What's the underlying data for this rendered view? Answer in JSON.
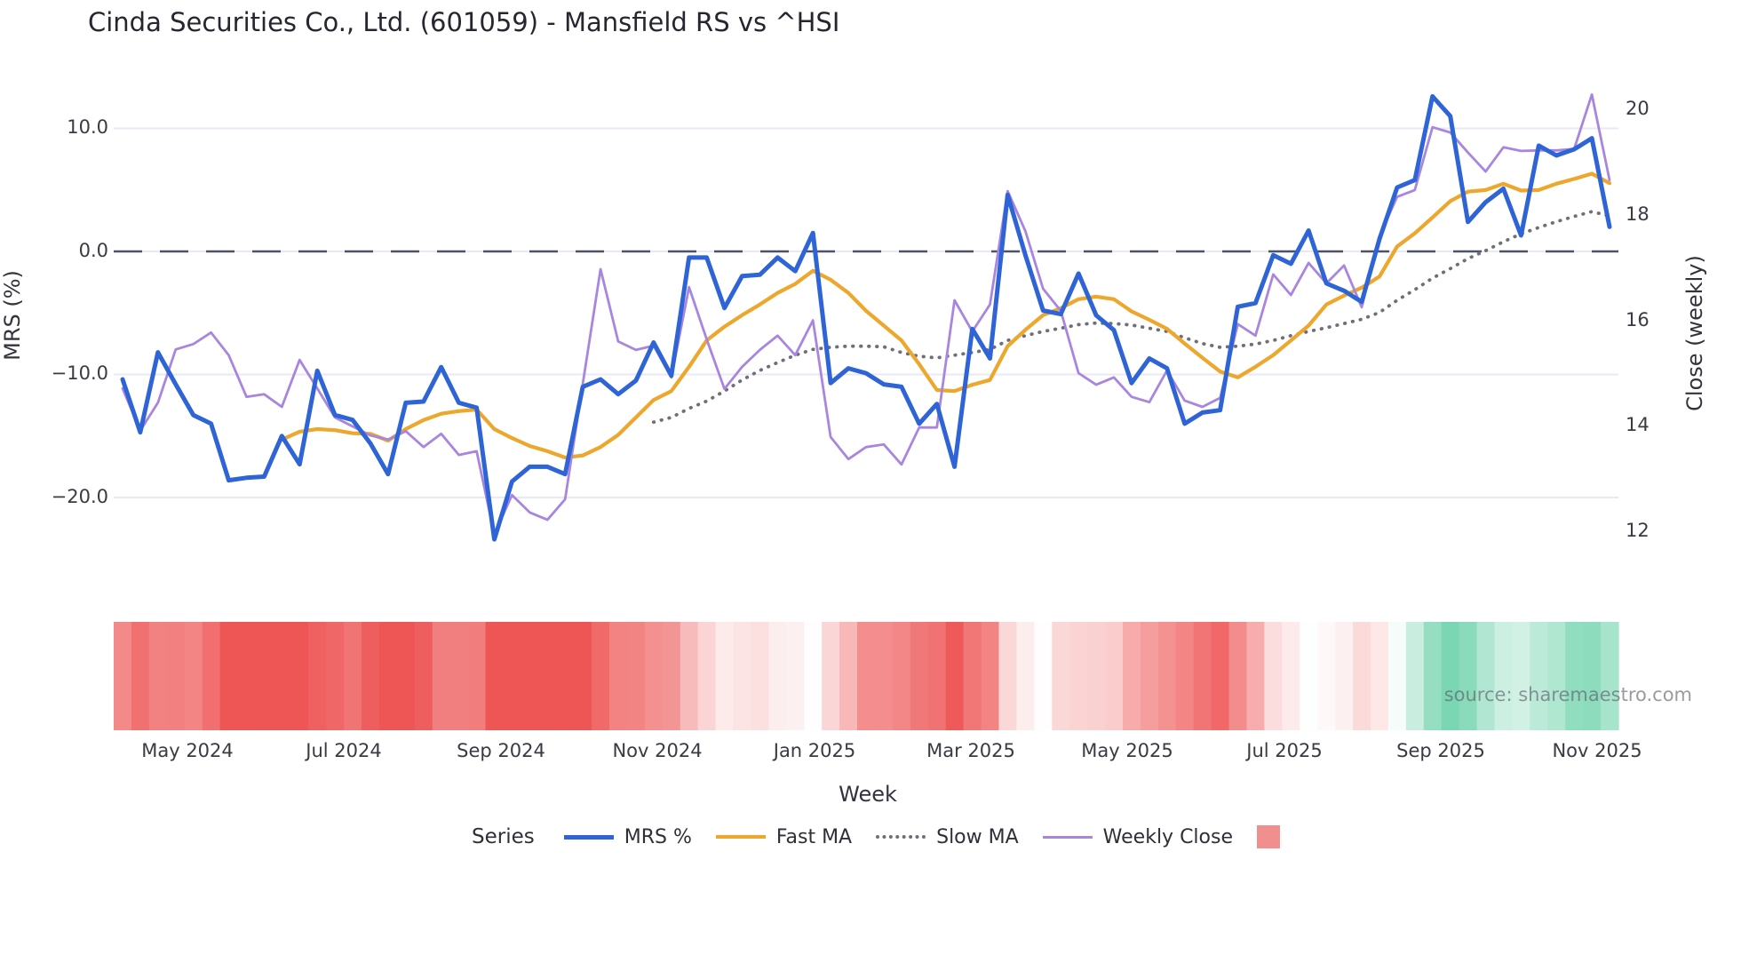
{
  "title": "Cinda Securities Co., Ltd. (601059) - Mansfield RS vs ^HSI",
  "watermark": "source: sharemaestro.com",
  "axes": {
    "left": {
      "label": "MRS (%)",
      "ticks": [
        "10.0",
        "0.0",
        "−10.0",
        "−20.0"
      ],
      "tick_values": [
        10,
        0,
        -10,
        -20
      ]
    },
    "right": {
      "label": "Close (weekly)",
      "ticks": [
        "20",
        "18",
        "16",
        "14",
        "12"
      ],
      "tick_values": [
        20,
        18,
        16,
        14,
        12
      ]
    },
    "x": {
      "label": "Week",
      "ticks": [
        "May 2024",
        "Jul 2024",
        "Sep 2024",
        "Nov 2024",
        "Jan 2025",
        "Mar 2025",
        "May 2025",
        "Jul 2025",
        "Sep 2025",
        "Nov 2025"
      ]
    }
  },
  "legend": {
    "title": "Series",
    "items": [
      {
        "label": "MRS %",
        "color": "#2e64d6",
        "style": "solid",
        "thickness": 5
      },
      {
        "label": "Fast MA",
        "color": "#eca72c",
        "style": "solid",
        "thickness": 4
      },
      {
        "label": "Slow MA",
        "color": "#6f6f78",
        "style": "dotted",
        "thickness": 4
      },
      {
        "label": "Weekly Close",
        "color": "#a886e0",
        "style": "solid",
        "thickness": 3
      }
    ],
    "heat_swatch_color": "#f18f8f"
  },
  "colors": {
    "zero_line": "#4d5268",
    "gridline": "#e9e9f4",
    "heat_red_max": "#ee5555",
    "heat_green_max": "#34c18a"
  },
  "chart_data": {
    "type": "line+heatmap",
    "x_unit": "week",
    "n_points": 85,
    "title": "Cinda Securities Co., Ltd. (601059) - Mansfield RS vs ^HSI",
    "xlabel": "Week",
    "ylabel_left": "MRS (%)",
    "ylabel_right": "Close (weekly)",
    "ylim_left": [
      -25,
      12
    ],
    "ylim_right": [
      11.5,
      20.5
    ],
    "x_tick_labels": [
      "May 2024",
      "Jul 2024",
      "Sep 2024",
      "Nov 2024",
      "Jan 2025",
      "Mar 2025",
      "May 2025",
      "Jul 2025",
      "Sep 2025",
      "Nov 2025"
    ],
    "zero_reference_line": 0,
    "series": [
      {
        "name": "MRS %",
        "axis": "left",
        "values": [
          -10.4,
          -14.7,
          -8.2,
          -10.8,
          -13.3,
          -14.0,
          -18.6,
          -18.4,
          -18.3,
          -15.0,
          -17.3,
          -9.7,
          -13.3,
          -13.7,
          -15.6,
          -18.1,
          -12.3,
          -12.2,
          -9.4,
          -12.3,
          -12.7,
          -23.4,
          -18.7,
          -17.5,
          -17.5,
          -18.1,
          -11.0,
          -10.4,
          -11.6,
          -10.5,
          -7.4,
          -10.1,
          -0.5,
          -0.5,
          -4.6,
          -2.0,
          -1.9,
          -0.5,
          -1.6,
          1.5,
          -10.7,
          -9.5,
          -9.9,
          -10.8,
          -11.0,
          -14.0,
          -12.4,
          -17.5,
          -6.3,
          -8.7,
          4.6,
          -0.3,
          -4.8,
          -5.1,
          -1.8,
          -5.2,
          -6.4,
          -10.7,
          -8.7,
          -9.5,
          -14.0,
          -13.1,
          -12.9,
          -4.5,
          -4.2,
          -0.3,
          -1.0,
          1.7,
          -2.6,
          -3.2,
          -4.1,
          1.0,
          5.2,
          5.8,
          12.6,
          11.0,
          2.4,
          4.0,
          5.1,
          1.3,
          8.6,
          7.8,
          8.3,
          9.2,
          2.0
        ]
      },
      {
        "name": "Fast MA",
        "axis": "right",
        "values": [
          null,
          null,
          null,
          null,
          null,
          null,
          null,
          null,
          null,
          13.74,
          13.89,
          13.94,
          13.92,
          13.86,
          13.85,
          13.72,
          13.94,
          14.11,
          14.23,
          14.28,
          14.31,
          13.94,
          13.77,
          13.62,
          13.52,
          13.4,
          13.44,
          13.6,
          13.83,
          14.16,
          14.49,
          14.66,
          15.12,
          15.62,
          15.88,
          16.1,
          16.3,
          16.52,
          16.69,
          16.94,
          16.77,
          16.52,
          16.18,
          15.9,
          15.62,
          15.17,
          14.68,
          14.66,
          14.78,
          14.87,
          15.51,
          15.82,
          16.1,
          16.23,
          16.4,
          16.45,
          16.4,
          16.17,
          16.01,
          15.84,
          15.56,
          15.29,
          15.03,
          14.92,
          15.12,
          15.34,
          15.62,
          15.9,
          16.3,
          16.47,
          16.62,
          16.83,
          17.4,
          17.65,
          17.95,
          18.26,
          18.44,
          18.47,
          18.59,
          18.46,
          18.47,
          18.59,
          18.68,
          18.78,
          18.6
        ]
      },
      {
        "name": "Slow MA",
        "axis": "right",
        "values": [
          null,
          null,
          null,
          null,
          null,
          null,
          null,
          null,
          null,
          null,
          null,
          null,
          null,
          null,
          null,
          null,
          null,
          null,
          null,
          null,
          null,
          null,
          null,
          null,
          null,
          null,
          null,
          null,
          null,
          null,
          14.07,
          14.16,
          14.33,
          14.47,
          14.66,
          14.87,
          15.05,
          15.2,
          15.34,
          15.45,
          15.49,
          15.51,
          15.51,
          15.5,
          15.39,
          15.32,
          15.29,
          15.34,
          15.39,
          15.45,
          15.62,
          15.71,
          15.79,
          15.85,
          15.92,
          15.95,
          15.94,
          15.91,
          15.85,
          15.79,
          15.67,
          15.56,
          15.49,
          15.51,
          15.55,
          15.62,
          15.71,
          15.79,
          15.86,
          15.94,
          16.02,
          16.15,
          16.38,
          16.58,
          16.8,
          16.98,
          17.17,
          17.32,
          17.49,
          17.64,
          17.76,
          17.87,
          17.97,
          18.06,
          17.98
        ]
      },
      {
        "name": "Weekly Close",
        "axis": "right",
        "values": [
          14.71,
          13.91,
          14.44,
          15.45,
          15.55,
          15.77,
          15.34,
          14.55,
          14.6,
          14.36,
          15.25,
          14.71,
          14.16,
          13.99,
          13.82,
          13.74,
          13.9,
          13.6,
          13.85,
          13.45,
          13.52,
          11.94,
          12.69,
          12.36,
          12.22,
          12.61,
          14.8,
          16.97,
          15.6,
          15.44,
          15.52,
          14.92,
          16.63,
          15.64,
          14.7,
          15.12,
          15.44,
          15.71,
          15.34,
          16.0,
          13.79,
          13.37,
          13.6,
          13.65,
          13.27,
          13.97,
          13.97,
          16.38,
          15.79,
          16.3,
          18.45,
          17.69,
          16.6,
          16.18,
          15.0,
          14.78,
          14.92,
          14.55,
          14.45,
          15.05,
          14.48,
          14.36,
          14.53,
          15.93,
          15.71,
          16.87,
          16.48,
          17.09,
          16.7,
          17.04,
          16.25,
          17.6,
          18.34,
          18.47,
          19.66,
          19.56,
          19.18,
          18.82,
          19.28,
          19.21,
          19.22,
          19.22,
          19.25,
          20.28,
          18.66
        ]
      }
    ],
    "heatmap_strip": {
      "description": "weekly red-to-green strip below plot, shade derived from trailing 3-week mean of MRS %",
      "red_max": "#ee5555",
      "green_max": "#34c18a",
      "intensity_scale": 15
    }
  }
}
